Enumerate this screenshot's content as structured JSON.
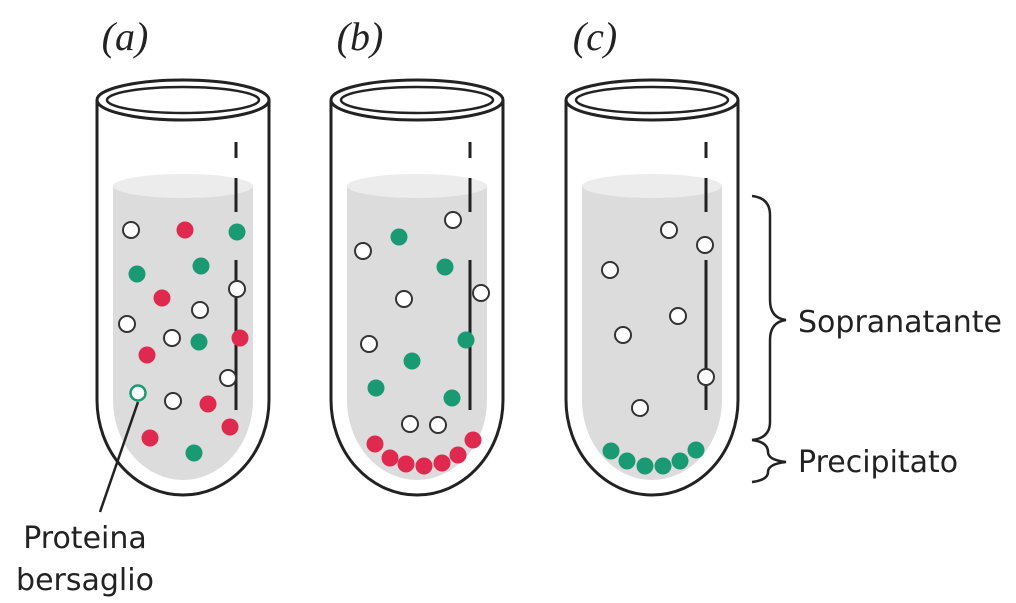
{
  "tubes": [
    {
      "label": "(a)"
    },
    {
      "label": "(b)"
    },
    {
      "label": "(c)"
    }
  ],
  "annotations": {
    "target_protein": [
      "Proteina",
      "bersaglio"
    ],
    "supernatant": "Sopranatante",
    "precipitate": "Precipitato"
  }
}
